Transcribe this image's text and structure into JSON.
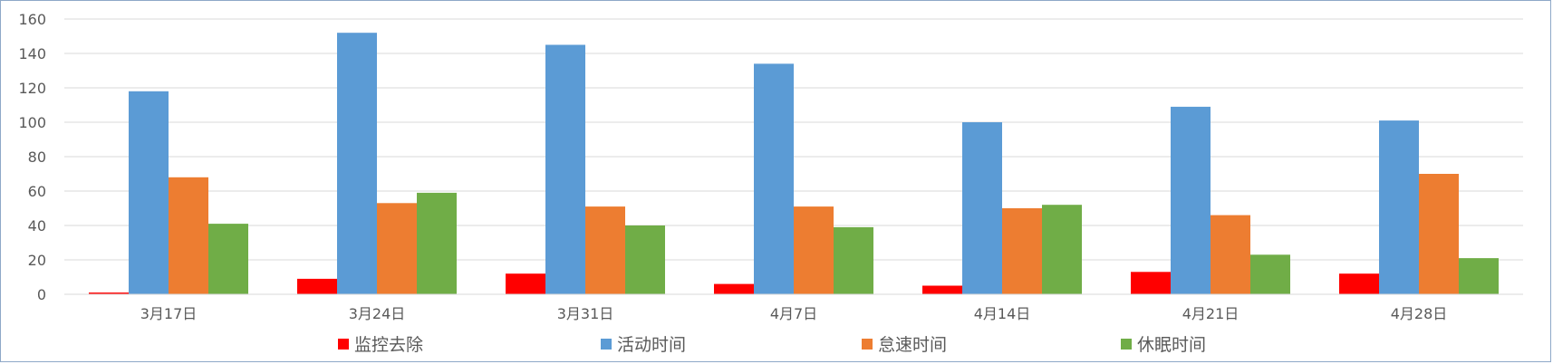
{
  "chart_data": {
    "type": "bar",
    "categories": [
      "3月17日",
      "3月24日",
      "3月31日",
      "4月7日",
      "4月14日",
      "4月21日",
      "4月28日"
    ],
    "series": [
      {
        "name": "监控去除",
        "color": "#ff0000",
        "values": [
          1,
          9,
          12,
          6,
          5,
          13,
          12
        ]
      },
      {
        "name": "活动时间",
        "color": "#5b9bd5",
        "values": [
          118,
          152,
          145,
          134,
          100,
          109,
          101
        ]
      },
      {
        "name": "怠速时间",
        "color": "#ed7d31",
        "values": [
          68,
          53,
          51,
          51,
          50,
          46,
          70
        ]
      },
      {
        "name": "休眠时间",
        "color": "#70ad47",
        "values": [
          41,
          59,
          40,
          39,
          52,
          23,
          21
        ]
      }
    ],
    "ylim": [
      0,
      160
    ],
    "yticks": [
      0,
      20,
      40,
      60,
      80,
      100,
      120,
      140,
      160
    ],
    "grid": true,
    "legend": "bottom"
  }
}
